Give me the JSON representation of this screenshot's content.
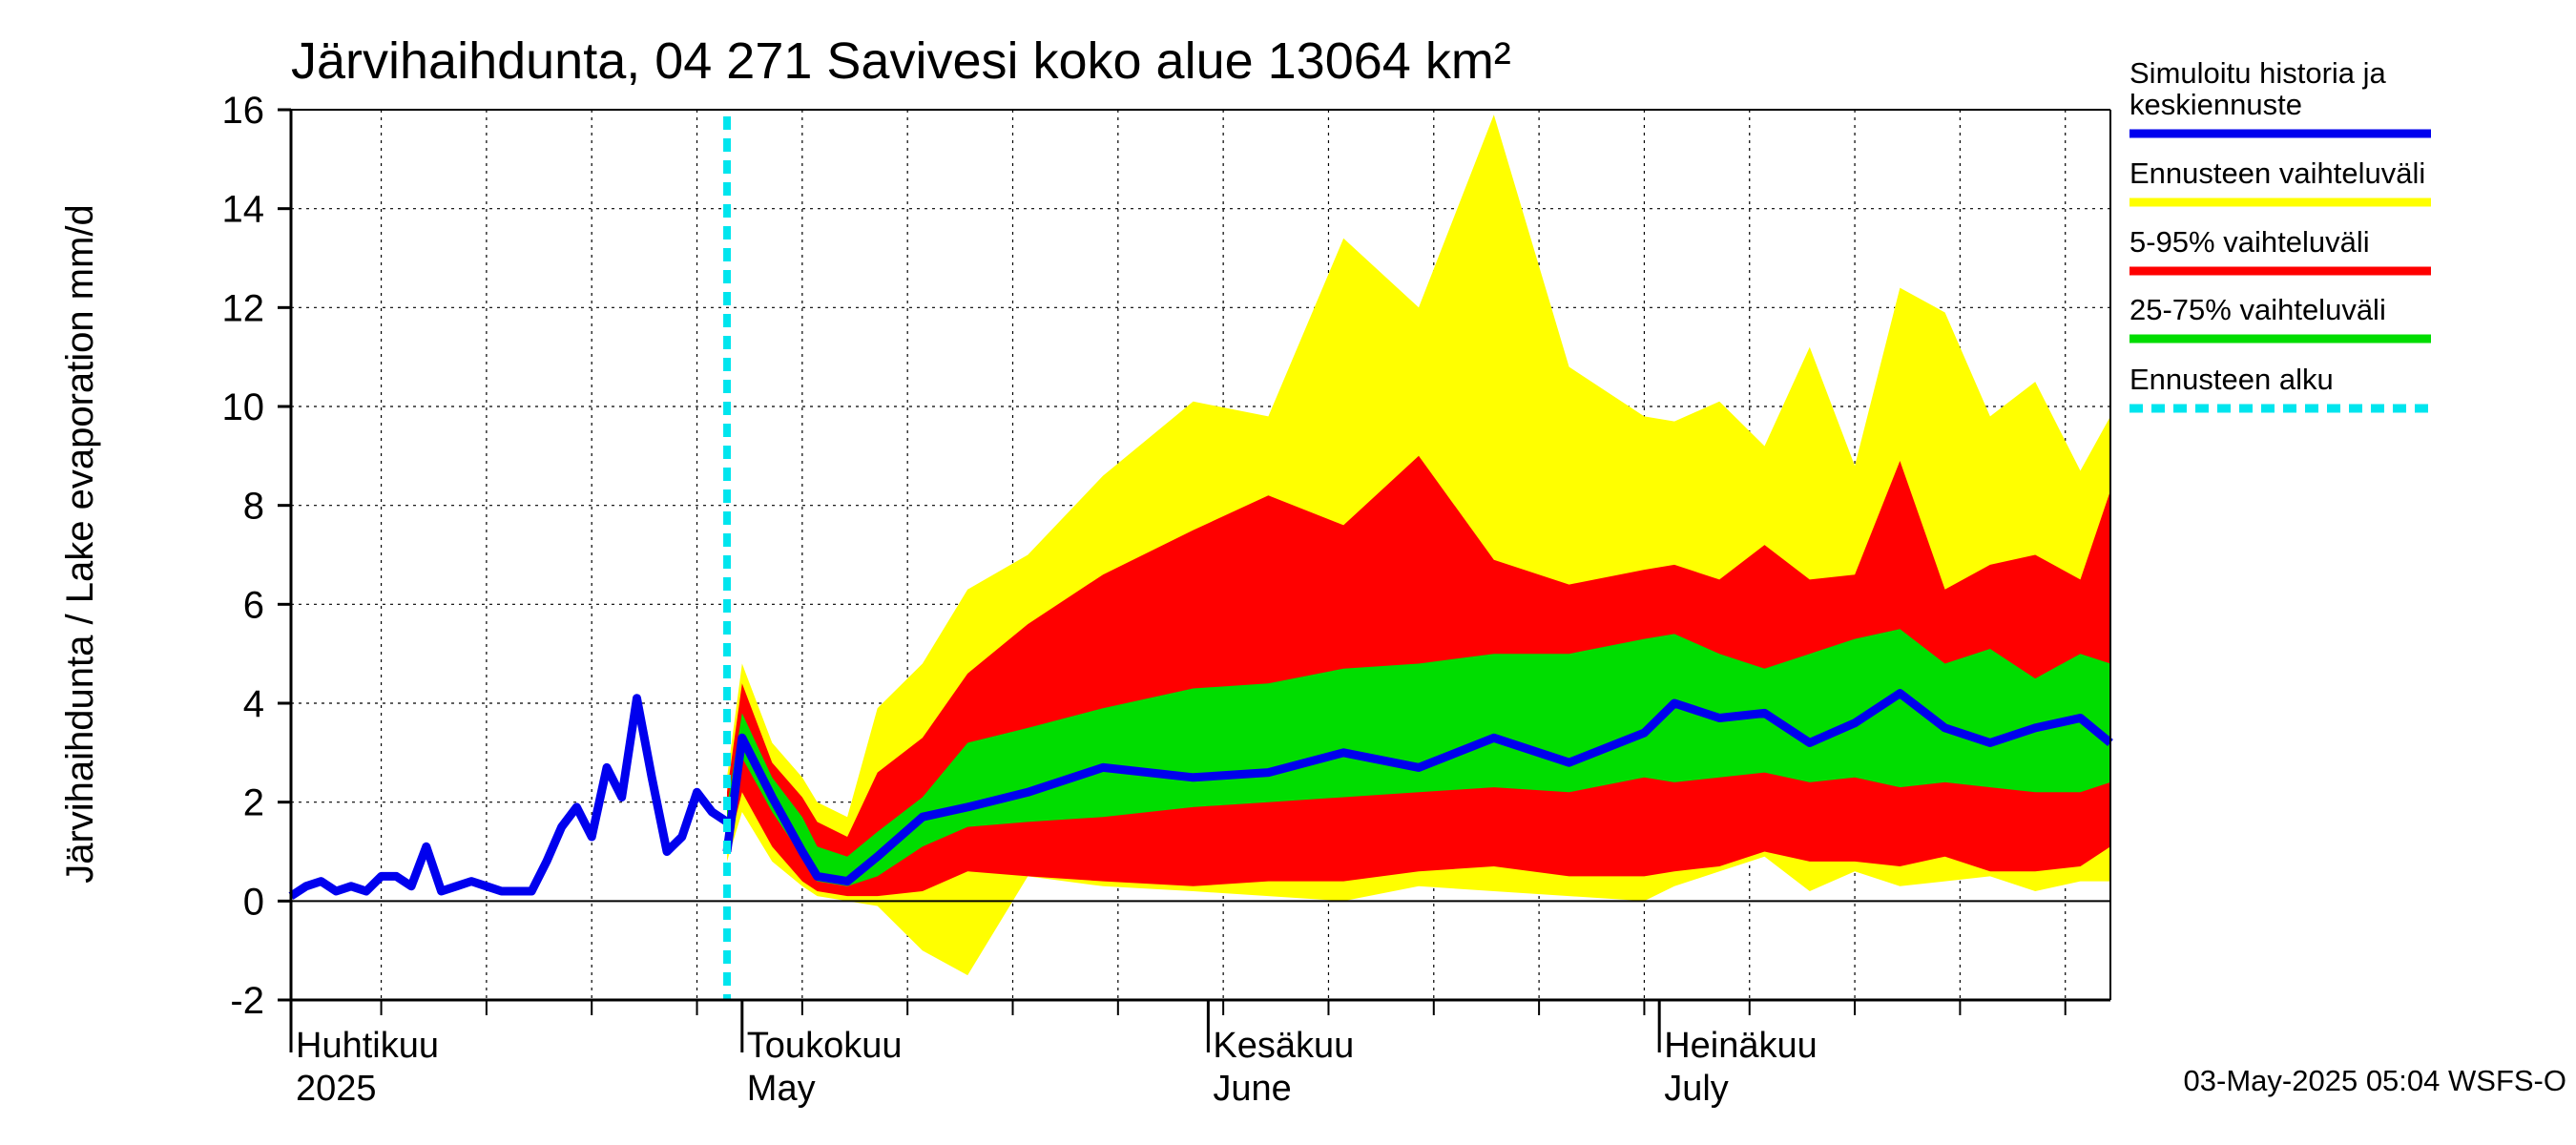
{
  "chart_data": {
    "type": "area",
    "title": "Järvihaihdunta, 04 271 Savivesi koko alue 13064 km²",
    "ylabel": "Järvihaihdunta / Lake evaporation   mm/d",
    "xlabel": "",
    "ylim": [
      -2,
      16
    ],
    "yticks": [
      "-2",
      "0",
      "2",
      "4",
      "6",
      "8",
      "10",
      "12",
      "14",
      "16"
    ],
    "ytick_values": [
      -2,
      0,
      2,
      4,
      6,
      8,
      10,
      12,
      14,
      16
    ],
    "x_start": "2025-04-01",
    "x_end": "2025-07-31",
    "grid": true,
    "legend_position": "right",
    "months": [
      {
        "date": "2025-04-01",
        "label_fi": "Huhtikuu",
        "label_en": "2025"
      },
      {
        "date": "2025-05-01",
        "label_fi": "Toukokuu",
        "label_en": "May"
      },
      {
        "date": "2025-06-01",
        "label_fi": "Kesäkuu",
        "label_en": "June"
      },
      {
        "date": "2025-07-01",
        "label_fi": "Heinäkuu",
        "label_en": "July"
      }
    ],
    "forecast_start": "2025-04-30",
    "history_dates": [
      "2025-04-01",
      "2025-04-02",
      "2025-04-03",
      "2025-04-04",
      "2025-04-05",
      "2025-04-06",
      "2025-04-07",
      "2025-04-08",
      "2025-04-09",
      "2025-04-10",
      "2025-04-11",
      "2025-04-12",
      "2025-04-13",
      "2025-04-14",
      "2025-04-15",
      "2025-04-16",
      "2025-04-17",
      "2025-04-18",
      "2025-04-19",
      "2025-04-20",
      "2025-04-21",
      "2025-04-22",
      "2025-04-23",
      "2025-04-24",
      "2025-04-25",
      "2025-04-26",
      "2025-04-27",
      "2025-04-28",
      "2025-04-29",
      "2025-04-30"
    ],
    "history_values": [
      0.1,
      0.3,
      0.4,
      0.2,
      0.3,
      0.2,
      0.5,
      0.5,
      0.3,
      1.1,
      0.2,
      0.3,
      0.4,
      0.3,
      0.2,
      0.2,
      0.2,
      0.8,
      1.5,
      1.9,
      1.3,
      2.7,
      2.1,
      4.1,
      2.5,
      1.0,
      1.3,
      2.2,
      1.8,
      1.6
    ],
    "forecast_dates": [
      "2025-04-30",
      "2025-05-01",
      "2025-05-03",
      "2025-05-05",
      "2025-05-06",
      "2025-05-08",
      "2025-05-10",
      "2025-05-13",
      "2025-05-16",
      "2025-05-20",
      "2025-05-25",
      "2025-05-31",
      "2025-06-05",
      "2025-06-10",
      "2025-06-15",
      "2025-06-20",
      "2025-06-25",
      "2025-06-30",
      "2025-07-02",
      "2025-07-05",
      "2025-07-08",
      "2025-07-11",
      "2025-07-14",
      "2025-07-17",
      "2025-07-20",
      "2025-07-23",
      "2025-07-26",
      "2025-07-29",
      "2025-07-31"
    ],
    "series": [
      {
        "name": "Ennusteen vaihteluväli",
        "color": "#ffff00",
        "upper": [
          2.5,
          4.8,
          3.2,
          2.5,
          2.0,
          1.7,
          3.9,
          4.8,
          6.3,
          7.0,
          8.6,
          10.1,
          9.8,
          13.4,
          12.0,
          15.9,
          10.8,
          9.8,
          9.7,
          10.1,
          9.2,
          11.2,
          8.8,
          12.4,
          11.9,
          9.8,
          10.5,
          8.7,
          9.8
        ],
        "lower": [
          0.8,
          1.8,
          0.8,
          0.3,
          0.1,
          0.0,
          -0.1,
          -1.0,
          -1.5,
          0.5,
          0.3,
          0.2,
          0.1,
          0.0,
          0.3,
          0.2,
          0.1,
          0.0,
          0.3,
          0.6,
          0.9,
          0.2,
          0.6,
          0.3,
          0.4,
          0.5,
          0.2,
          0.4,
          0.4
        ]
      },
      {
        "name": "5-95% vaihteluväli",
        "color": "#ff0000",
        "upper": [
          2.2,
          4.4,
          2.8,
          2.1,
          1.6,
          1.3,
          2.6,
          3.3,
          4.6,
          5.6,
          6.6,
          7.5,
          8.2,
          7.6,
          9.0,
          6.9,
          6.4,
          6.7,
          6.8,
          6.5,
          7.2,
          6.5,
          6.6,
          8.9,
          6.3,
          6.8,
          7.0,
          6.5,
          8.3
        ],
        "lower": [
          1.0,
          2.2,
          1.1,
          0.4,
          0.2,
          0.1,
          0.1,
          0.2,
          0.6,
          0.5,
          0.4,
          0.3,
          0.4,
          0.4,
          0.6,
          0.7,
          0.5,
          0.5,
          0.6,
          0.7,
          1.0,
          0.8,
          0.8,
          0.7,
          0.9,
          0.6,
          0.6,
          0.7,
          1.1
        ]
      },
      {
        "name": "25-75% vaihteluväli",
        "color": "#00dd00",
        "upper": [
          1.9,
          3.8,
          2.5,
          1.7,
          1.1,
          0.9,
          1.4,
          2.1,
          3.2,
          3.5,
          3.9,
          4.3,
          4.4,
          4.7,
          4.8,
          5.0,
          5.0,
          5.3,
          5.4,
          5.0,
          4.7,
          5.0,
          5.3,
          5.5,
          4.8,
          5.1,
          4.5,
          5.0,
          4.8
        ],
        "lower": [
          1.3,
          2.9,
          1.8,
          0.9,
          0.4,
          0.3,
          0.5,
          1.1,
          1.5,
          1.6,
          1.7,
          1.9,
          2.0,
          2.1,
          2.2,
          2.3,
          2.2,
          2.5,
          2.4,
          2.5,
          2.6,
          2.4,
          2.5,
          2.3,
          2.4,
          2.3,
          2.2,
          2.2,
          2.4
        ]
      },
      {
        "name": "Simuloitu historia ja keskiennuste",
        "color": "#0000ee",
        "values": [
          1.0,
          3.3,
          2.1,
          1.0,
          0.5,
          0.4,
          0.9,
          1.7,
          1.9,
          2.2,
          2.7,
          2.5,
          2.6,
          3.0,
          2.7,
          3.3,
          2.8,
          3.4,
          4.0,
          3.7,
          3.8,
          3.2,
          3.6,
          4.2,
          3.5,
          3.2,
          3.5,
          3.7,
          3.2
        ]
      }
    ],
    "legend": [
      {
        "label": "Simuloitu historia ja keskiennuste",
        "color": "#0000ee",
        "style": "solid"
      },
      {
        "label": "Ennusteen vaihteluväli",
        "color": "#ffff00",
        "style": "solid"
      },
      {
        "label": "5-95% vaihteluväli",
        "color": "#ff0000",
        "style": "solid"
      },
      {
        "label": "25-75% vaihteluväli",
        "color": "#00dd00",
        "style": "solid"
      },
      {
        "label": "Ennusteen alku",
        "color": "#00e5ee",
        "style": "dashed"
      }
    ],
    "legend_lines": [
      [
        "Simuloitu historia ja",
        "keskiennuste"
      ],
      [
        "Ennusteen vaihteluväli"
      ],
      [
        "5-95% vaihteluväli"
      ],
      [
        "25-75% vaihteluväli"
      ],
      [
        "Ennusteen alku"
      ]
    ],
    "timestamp": "03-May-2025 05:04 WSFS-O"
  }
}
